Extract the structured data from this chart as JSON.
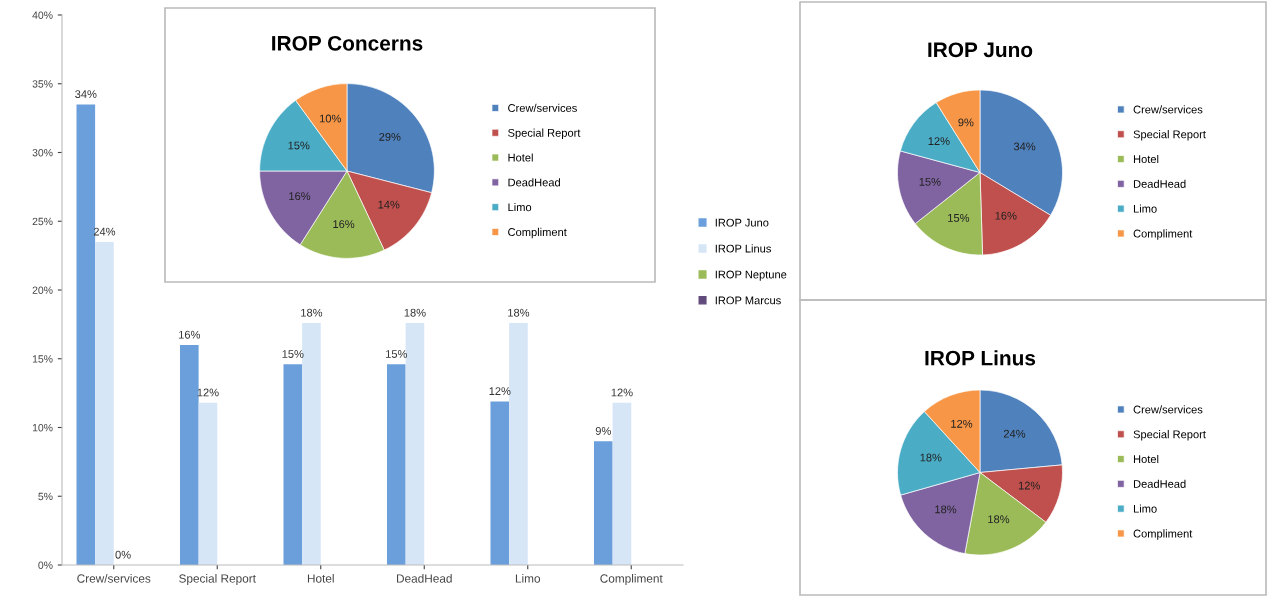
{
  "chart_data": [
    {
      "type": "bar",
      "categories": [
        "Crew/services",
        "Special Report",
        "Hotel",
        "DeadHead",
        "Limo",
        "Compliment"
      ],
      "series": [
        {
          "name": "IROP Juno",
          "color": "#6a9fdc",
          "values": [
            33.5,
            16,
            14.6,
            14.6,
            11.9,
            9
          ],
          "value_labels": [
            "34%",
            "16%",
            "15%",
            "15%",
            "12%",
            "9%"
          ]
        },
        {
          "name": "IROP Linus",
          "color": "#d6e6f7",
          "values": [
            23.5,
            11.8,
            17.6,
            17.6,
            17.6,
            11.8
          ],
          "value_labels": [
            "24%",
            "12%",
            "18%",
            "18%",
            "18%",
            "12%"
          ]
        },
        {
          "name": "IROP Neptune",
          "color": "#9bbb59",
          "values": [
            0,
            null,
            null,
            null,
            null,
            null
          ],
          "value_labels": [
            "0%",
            null,
            null,
            null,
            null,
            null
          ]
        },
        {
          "name": "IROP Marcus",
          "color": "#604a7b",
          "values": [
            null,
            null,
            null,
            null,
            null,
            null
          ]
        }
      ],
      "ylim": [
        0,
        40
      ],
      "yticks": [
        {
          "value": 0,
          "label": "0%"
        },
        {
          "value": 5,
          "label": "5%"
        },
        {
          "value": 10,
          "label": "10%"
        },
        {
          "value": 15,
          "label": "15%"
        },
        {
          "value": 20,
          "label": "20%"
        },
        {
          "value": 25,
          "label": "25%"
        },
        {
          "value": 30,
          "label": "30%"
        },
        {
          "value": 35,
          "label": "35%"
        },
        {
          "value": 40,
          "label": "40%"
        }
      ],
      "legend": "right",
      "grid": false
    },
    {
      "type": "pie",
      "title": "IROP Concerns",
      "categories": [
        "Crew/services",
        "Special Report",
        "Hotel",
        "DeadHead",
        "Limo",
        "Compliment"
      ],
      "values": [
        29,
        14,
        16,
        16,
        15,
        10
      ],
      "value_labels": [
        "29%",
        "14%",
        "16%",
        "16%",
        "15%",
        "10%"
      ],
      "colors": [
        "#4f81bd",
        "#c0504d",
        "#9bbb59",
        "#8064a2",
        "#4bacc6",
        "#f79646"
      ],
      "legend": "right"
    },
    {
      "type": "pie",
      "title": "IROP Juno",
      "categories": [
        "Crew/services",
        "Special Report",
        "Hotel",
        "DeadHead",
        "Limo",
        "Compliment"
      ],
      "values": [
        34,
        16,
        15,
        15,
        12,
        9
      ],
      "value_labels": [
        "34%",
        "16%",
        "15%",
        "15%",
        "12%",
        "9%"
      ],
      "colors": [
        "#4f81bd",
        "#c0504d",
        "#9bbb59",
        "#8064a2",
        "#4bacc6",
        "#f79646"
      ],
      "legend": "right"
    },
    {
      "type": "pie",
      "title": "IROP Linus",
      "categories": [
        "Crew/services",
        "Special Report",
        "Hotel",
        "DeadHead",
        "Limo",
        "Compliment"
      ],
      "values": [
        24,
        12,
        18,
        18,
        18,
        12
      ],
      "value_labels": [
        "24%",
        "12%",
        "18%",
        "18%",
        "18%",
        "12%"
      ],
      "colors": [
        "#4f81bd",
        "#c0504d",
        "#9bbb59",
        "#8064a2",
        "#4bacc6",
        "#f79646"
      ],
      "legend": "right"
    }
  ]
}
